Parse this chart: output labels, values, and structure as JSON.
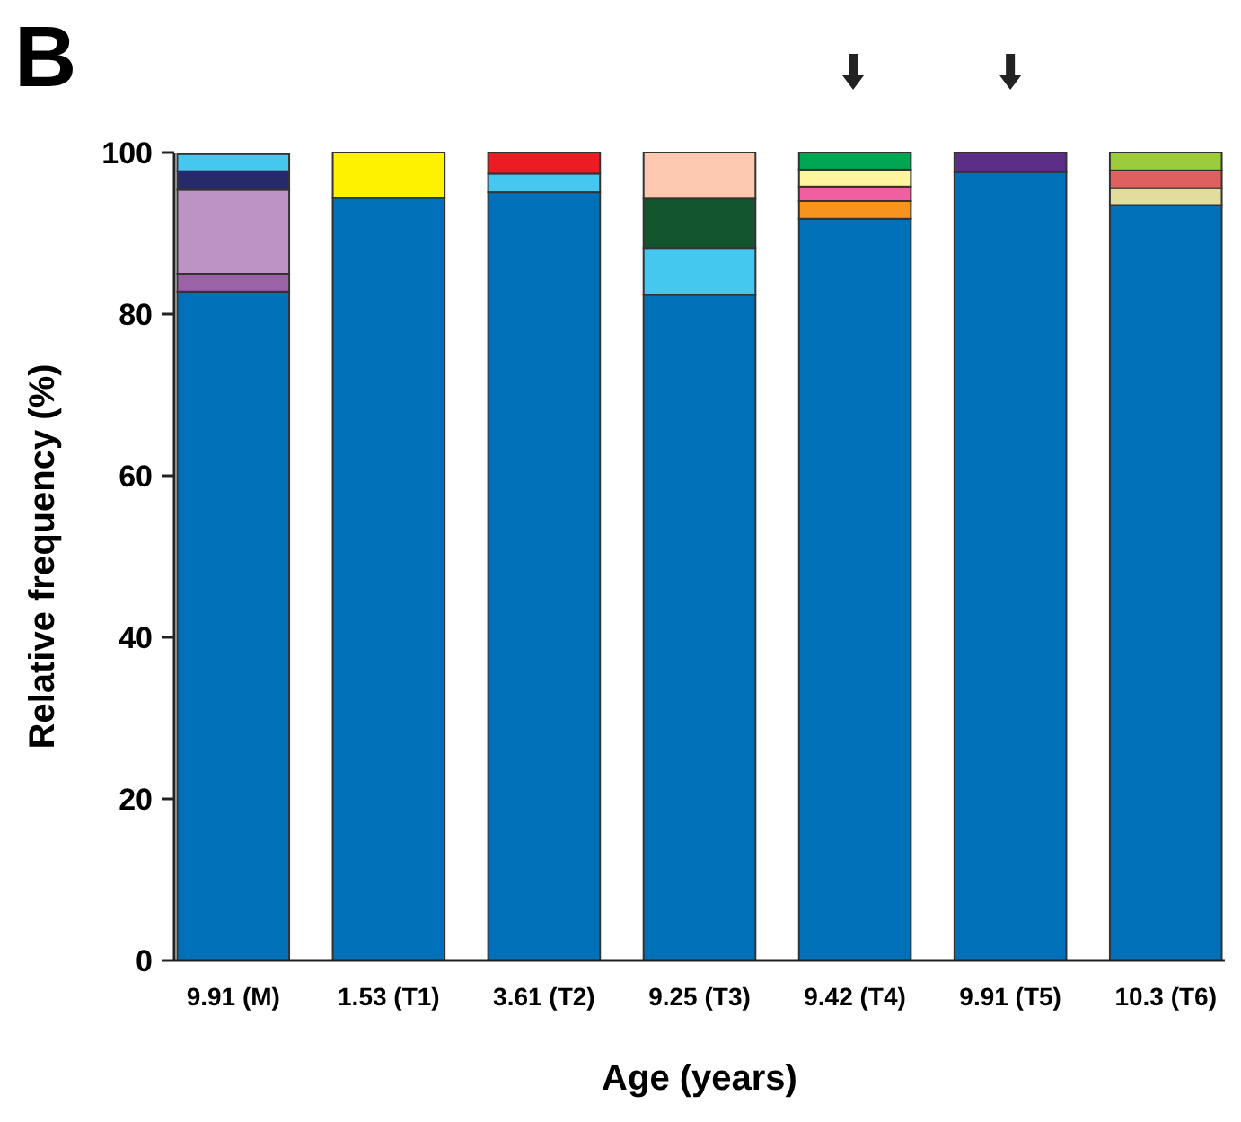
{
  "chart_data": {
    "type": "bar",
    "title": "B",
    "xlabel": "Age (years)",
    "ylabel": "Relative frequency (%)",
    "categories": [
      "9.91 (M)",
      "1.53 (T1)",
      "3.61 (T2)",
      "9.25 (T3)",
      "9.42 (T4)",
      "9.91 (T5)",
      "10.3 (T6)"
    ],
    "stacked": true,
    "grid": false,
    "ylim": [
      0,
      100
    ],
    "yticks": [
      0,
      20,
      40,
      60,
      80,
      100
    ],
    "series": [
      {
        "color": "#0070b8",
        "values": [
          82.8,
          94.4,
          95.1,
          82.4,
          91.8,
          97.6,
          93.5
        ]
      },
      {
        "colors": [
          "#9b62a8",
          "#fff200",
          "#45c8f0",
          "#45c8f0",
          "#f7941d",
          "#5b2d86",
          "#e2dd9c"
        ],
        "values": [
          2.2,
          5.6,
          2.3,
          5.8,
          2.2,
          2.4,
          2.1
        ]
      },
      {
        "colors": [
          "#bd92c4",
          null,
          "#ed1c24",
          "#12552f",
          "#f05fa0",
          null,
          "#e05f5f"
        ],
        "values": [
          10.4,
          null,
          2.6,
          6.1,
          1.8,
          null,
          2.2
        ]
      },
      {
        "colors": [
          "#262a6b",
          null,
          null,
          "#fdc8b0",
          "#fff59e",
          null,
          "#9ccb3b"
        ],
        "values": [
          2.3,
          null,
          null,
          5.7,
          2.1,
          null,
          2.2
        ]
      },
      {
        "colors": [
          "#45c8f0",
          null,
          null,
          null,
          "#00a651",
          null,
          null
        ],
        "values": [
          2.1,
          null,
          null,
          null,
          2.1,
          null,
          null
        ]
      }
    ]
  }
}
